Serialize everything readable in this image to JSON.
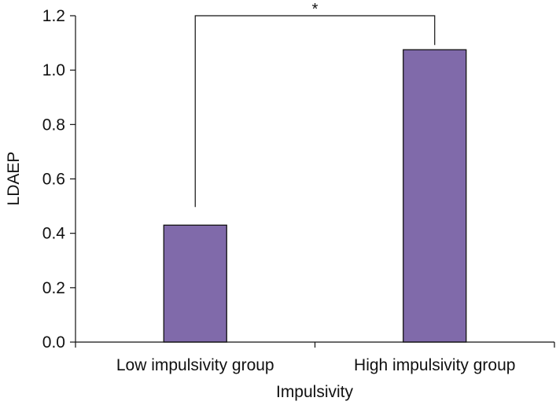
{
  "chart_data": {
    "type": "bar",
    "categories": [
      "Low impulsivity group",
      "High impulsivity group"
    ],
    "values": [
      0.43,
      1.075
    ],
    "xlabel": "Impulsivity",
    "ylabel": "LDAEP",
    "ylim": [
      0,
      1.2
    ],
    "yticks": [
      "0.0",
      "0.2",
      "0.4",
      "0.6",
      "0.8",
      "1.0",
      "1.2"
    ],
    "grid": false,
    "significance": {
      "between": [
        0,
        1
      ],
      "label": "*"
    },
    "colors": {
      "bar_fill": "#806aaa",
      "bar_stroke": "#111111",
      "axis": "#111111"
    }
  }
}
